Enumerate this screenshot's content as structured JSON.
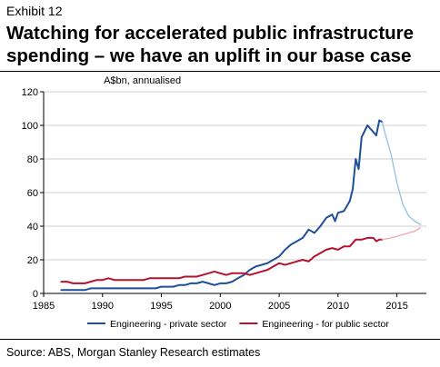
{
  "header": {
    "exhibit": "Exhibit 12",
    "title_line1": "Watching for accelerated public infrastructure",
    "title_line2": "spending – we have an uplift in our base case"
  },
  "source": "Source: ABS, Morgan Stanley Research estimates",
  "chart_data": {
    "type": "line",
    "ylabel": "A$bn, annualised",
    "xlabel": "",
    "xlim": [
      1985,
      2017.5
    ],
    "ylim": [
      0,
      120
    ],
    "xticks": [
      1985,
      1990,
      1995,
      2000,
      2005,
      2010,
      2015
    ],
    "yticks": [
      0,
      20,
      40,
      60,
      80,
      100,
      120
    ],
    "grid": "horizontal",
    "legend_position": "bottom",
    "series": [
      {
        "name": "Engineering - private sector",
        "color": "#1f4e9a",
        "values": [
          [
            1986.5,
            2
          ],
          [
            1987,
            2
          ],
          [
            1987.5,
            2
          ],
          [
            1988,
            2
          ],
          [
            1988.5,
            2
          ],
          [
            1989,
            3
          ],
          [
            1989.5,
            3
          ],
          [
            1990,
            3
          ],
          [
            1990.5,
            3
          ],
          [
            1991,
            3
          ],
          [
            1991.5,
            3
          ],
          [
            1992,
            3
          ],
          [
            1992.5,
            3
          ],
          [
            1993,
            3
          ],
          [
            1993.5,
            3
          ],
          [
            1994,
            3
          ],
          [
            1994.5,
            3
          ],
          [
            1995,
            4
          ],
          [
            1995.5,
            4
          ],
          [
            1996,
            4
          ],
          [
            1996.5,
            5
          ],
          [
            1997,
            5
          ],
          [
            1997.5,
            6
          ],
          [
            1998,
            6
          ],
          [
            1998.5,
            7
          ],
          [
            1999,
            6
          ],
          [
            1999.5,
            5
          ],
          [
            2000,
            6
          ],
          [
            2000.5,
            6
          ],
          [
            2001,
            7
          ],
          [
            2001.5,
            9
          ],
          [
            2002,
            11
          ],
          [
            2002.5,
            14
          ],
          [
            2003,
            16
          ],
          [
            2003.5,
            17
          ],
          [
            2004,
            18
          ],
          [
            2004.5,
            20
          ],
          [
            2005,
            22
          ],
          [
            2005.5,
            26
          ],
          [
            2006,
            29
          ],
          [
            2006.5,
            31
          ],
          [
            2007,
            33
          ],
          [
            2007.5,
            38
          ],
          [
            2008,
            36
          ],
          [
            2008.5,
            40
          ],
          [
            2009,
            45
          ],
          [
            2009.5,
            47
          ],
          [
            2009.75,
            43
          ],
          [
            2010,
            48
          ],
          [
            2010.5,
            49
          ],
          [
            2011,
            55
          ],
          [
            2011.25,
            62
          ],
          [
            2011.5,
            80
          ],
          [
            2011.75,
            74
          ],
          [
            2012,
            93
          ],
          [
            2012.5,
            100
          ],
          [
            2013,
            96
          ],
          [
            2013.25,
            94
          ],
          [
            2013.5,
            103
          ],
          [
            2013.75,
            102
          ]
        ]
      },
      {
        "name": "Engineering - for public sector",
        "color": "#b5122d",
        "values": [
          [
            1986.5,
            7
          ],
          [
            1987,
            7
          ],
          [
            1987.5,
            6
          ],
          [
            1988,
            6
          ],
          [
            1988.5,
            6
          ],
          [
            1989,
            7
          ],
          [
            1989.5,
            8
          ],
          [
            1990,
            8
          ],
          [
            1990.5,
            9
          ],
          [
            1991,
            8
          ],
          [
            1991.5,
            8
          ],
          [
            1992,
            8
          ],
          [
            1992.5,
            8
          ],
          [
            1993,
            8
          ],
          [
            1993.5,
            8
          ],
          [
            1994,
            9
          ],
          [
            1994.5,
            9
          ],
          [
            1995,
            9
          ],
          [
            1995.5,
            9
          ],
          [
            1996,
            9
          ],
          [
            1996.5,
            9
          ],
          [
            1997,
            10
          ],
          [
            1997.5,
            10
          ],
          [
            1998,
            10
          ],
          [
            1998.5,
            11
          ],
          [
            1999,
            12
          ],
          [
            1999.5,
            13
          ],
          [
            2000,
            12
          ],
          [
            2000.5,
            11
          ],
          [
            2001,
            12
          ],
          [
            2001.5,
            12
          ],
          [
            2002,
            12
          ],
          [
            2002.5,
            11
          ],
          [
            2003,
            12
          ],
          [
            2003.5,
            13
          ],
          [
            2004,
            14
          ],
          [
            2004.5,
            16
          ],
          [
            2005,
            18
          ],
          [
            2005.5,
            17
          ],
          [
            2006,
            18
          ],
          [
            2006.5,
            19
          ],
          [
            2007,
            20
          ],
          [
            2007.5,
            19
          ],
          [
            2008,
            22
          ],
          [
            2008.5,
            24
          ],
          [
            2009,
            26
          ],
          [
            2009.5,
            27
          ],
          [
            2010,
            26
          ],
          [
            2010.5,
            28
          ],
          [
            2011,
            28
          ],
          [
            2011.5,
            32
          ],
          [
            2012,
            32
          ],
          [
            2012.5,
            33
          ],
          [
            2013,
            33
          ],
          [
            2013.25,
            31
          ],
          [
            2013.5,
            32
          ],
          [
            2013.75,
            32
          ]
        ]
      },
      {
        "name": "",
        "color": "#8fc1e3",
        "values": [
          [
            2013.75,
            102
          ],
          [
            2014,
            95
          ],
          [
            2014.5,
            83
          ],
          [
            2015,
            66
          ],
          [
            2015.5,
            53
          ],
          [
            2016,
            46
          ],
          [
            2016.5,
            43
          ],
          [
            2017,
            41
          ]
        ]
      },
      {
        "name": "",
        "color": "#f0a6b6",
        "values": [
          [
            2013.75,
            32
          ],
          [
            2014.5,
            33
          ],
          [
            2015.5,
            35
          ],
          [
            2016.5,
            37
          ],
          [
            2017,
            39
          ]
        ]
      }
    ]
  }
}
